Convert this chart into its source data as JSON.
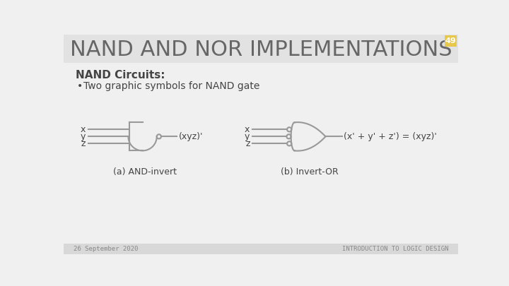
{
  "title": "NAND AND NOR IMPLEMENTATIONS",
  "slide_number": "49",
  "heading": "NAND Circuits:",
  "bullet": "Two graphic symbols for NAND gate",
  "label_a": "(a) AND-invert",
  "label_b": "(b) Invert-OR",
  "output_a": "(xyz)'",
  "output_b": "(x' + y' + z') = (xyz)'",
  "inputs": [
    "x",
    "y",
    "z"
  ],
  "footer_left": "26 September 2020",
  "footer_right": "INTRODUCTION TO LOGIC DESIGN",
  "bg_color": "#f0f0f0",
  "title_bg": "#e2e2e2",
  "gate_color": "#999999",
  "text_color": "#444444",
  "title_color": "#666666",
  "footer_color": "#888888",
  "footer_bg": "#d8d8d8",
  "slide_num_bg": "#e8c84a",
  "slide_num_color": "#ffffff"
}
